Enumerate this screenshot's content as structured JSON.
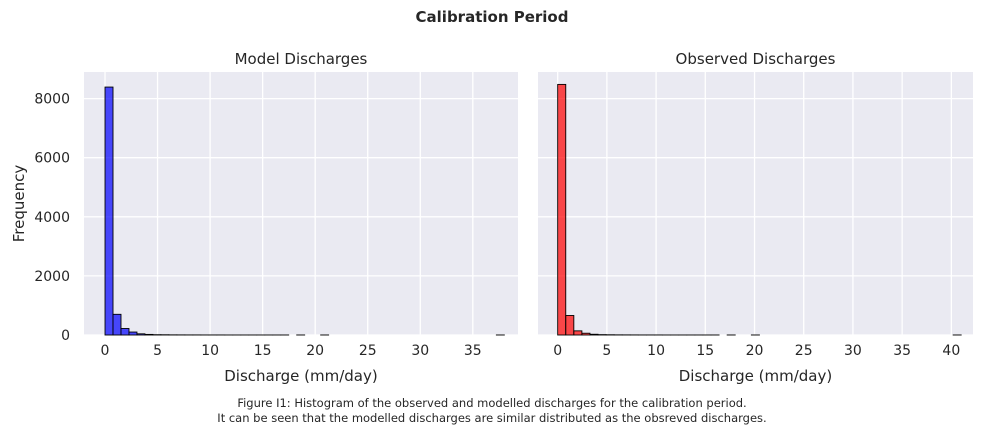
{
  "suptitle": "Calibration Period",
  "caption": [
    "Figure I1: Histogram of the observed and modelled discharges for the calibration period.",
    "It can be seen that the modelled discharges are similar distributed as the obsreved discharges."
  ],
  "chart_data": [
    {
      "type": "bar",
      "title": "Model Discharges",
      "xlabel": "Discharge (mm/day)",
      "ylabel": "Frequency",
      "color": "#0000ff",
      "bin_width": 0.76,
      "bins_start": 0,
      "values": [
        8390,
        700,
        220,
        100,
        40,
        20,
        10,
        8,
        5,
        4,
        3,
        3,
        2,
        2,
        2,
        1,
        1,
        1,
        1,
        1,
        1,
        1,
        1,
        0,
        1,
        0,
        0,
        1,
        0,
        0,
        0,
        0,
        0,
        0,
        0,
        0,
        0,
        0,
        0,
        0,
        0,
        0,
        0,
        0,
        0,
        0,
        0,
        0,
        0,
        1
      ],
      "xlim": [
        -2,
        39.3
      ],
      "ylim": [
        0,
        8900
      ],
      "xticks": [
        0,
        5,
        10,
        15,
        20,
        25,
        30,
        35
      ],
      "yticks": [
        0,
        2000,
        4000,
        6000,
        8000
      ],
      "grid": true
    },
    {
      "type": "bar",
      "title": "Observed Discharges",
      "xlabel": "Discharge (mm/day)",
      "ylabel": "",
      "color": "#ff0000",
      "bin_width": 0.82,
      "bins_start": 0,
      "values": [
        8480,
        660,
        140,
        60,
        25,
        12,
        8,
        5,
        4,
        3,
        2,
        2,
        2,
        1,
        1,
        1,
        1,
        1,
        1,
        1,
        0,
        1,
        0,
        0,
        1,
        0,
        0,
        0,
        0,
        0,
        0,
        0,
        0,
        0,
        0,
        0,
        0,
        0,
        0,
        0,
        0,
        0,
        0,
        0,
        0,
        0,
        0,
        0,
        0,
        1
      ],
      "xlim": [
        -2,
        42.2
      ],
      "ylim": [
        0,
        8900
      ],
      "xticks": [
        0,
        5,
        10,
        15,
        20,
        25,
        30,
        35,
        40
      ],
      "yticks": [
        0,
        2000,
        4000,
        6000,
        8000
      ],
      "grid": true
    }
  ]
}
